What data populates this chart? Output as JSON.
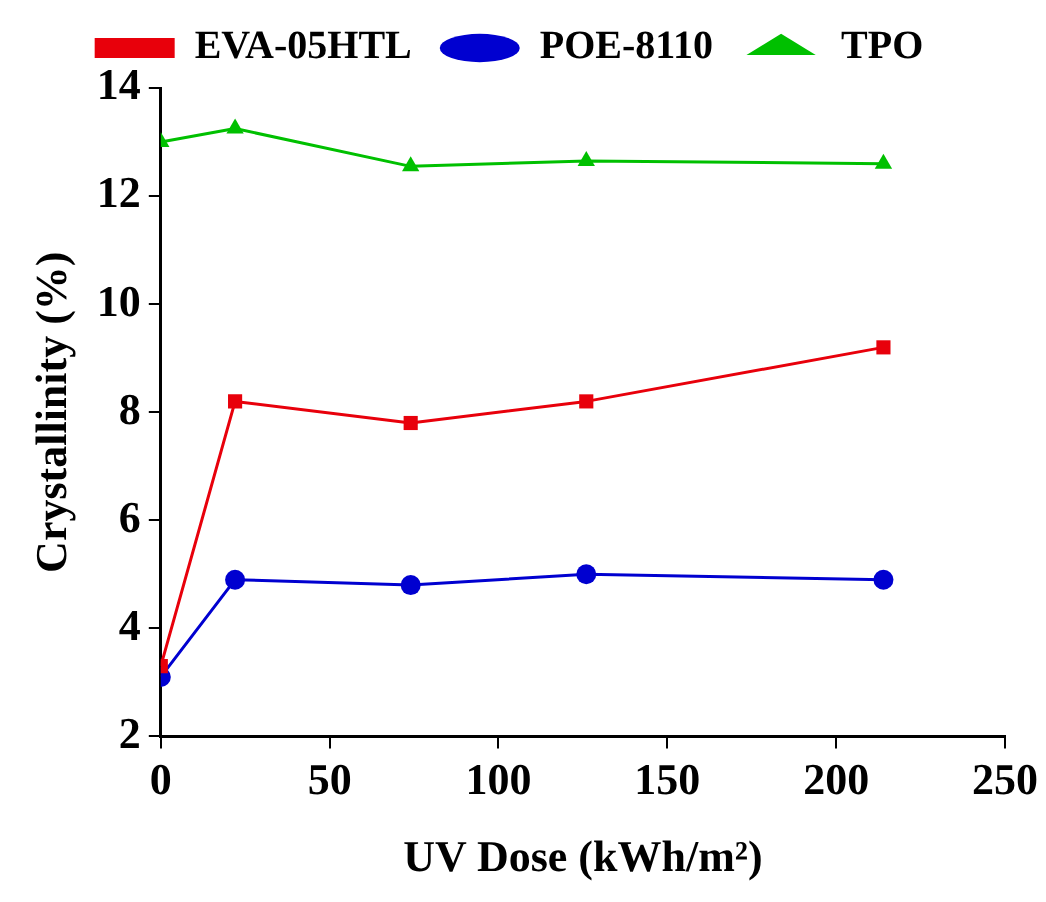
{
  "chart_data": {
    "type": "line",
    "xlabel": "UV Dose (kWh/m²)",
    "ylabel": "Crystallinity (%)",
    "x": [
      0,
      22,
      74,
      126,
      214
    ],
    "series": [
      {
        "name": "EVA-05HTL",
        "color": "#e8000b",
        "marker": "square",
        "values": [
          3.3,
          8.2,
          7.8,
          8.2,
          9.2
        ]
      },
      {
        "name": "POE-8110",
        "color": "#0000d0",
        "marker": "circle",
        "values": [
          3.1,
          4.9,
          4.8,
          5.0,
          4.9
        ]
      },
      {
        "name": "TPO",
        "color": "#00c000",
        "marker": "triangle",
        "values": [
          13.0,
          13.25,
          12.55,
          12.65,
          12.6
        ]
      }
    ],
    "xlim": [
      0,
      250
    ],
    "xticks": [
      0,
      50,
      100,
      150,
      200,
      250
    ],
    "ylim": [
      2,
      14
    ],
    "yticks": [
      2,
      4,
      6,
      8,
      10,
      12,
      14
    ],
    "grid": false,
    "legend": "top",
    "line_style": "solid"
  }
}
